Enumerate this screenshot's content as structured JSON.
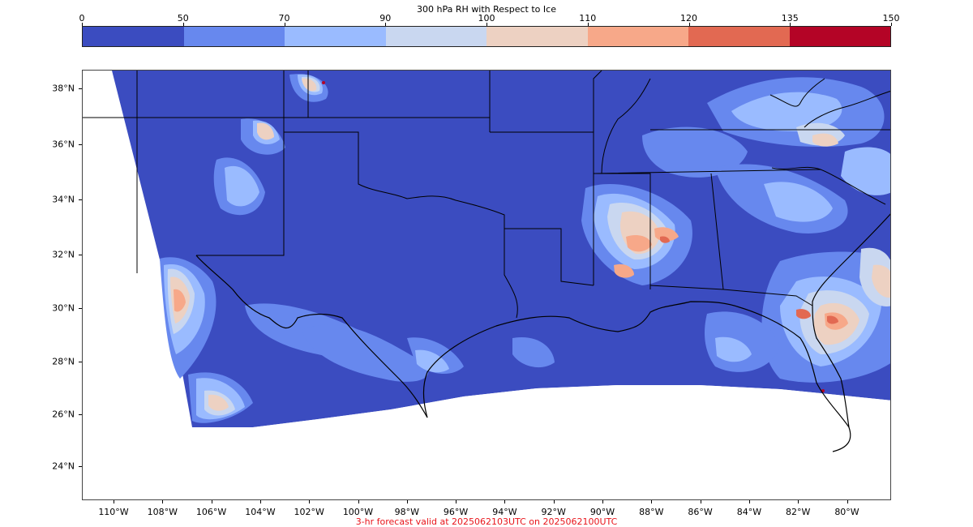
{
  "colorbar": {
    "title": "300 hPa RH with Respect to Ice",
    "levels": [
      "0",
      "50",
      "70",
      "90",
      "100",
      "110",
      "120",
      "135",
      "150"
    ],
    "colors": [
      "#3b4cc0",
      "#6788ee",
      "#9abbff",
      "#c9d7f0",
      "#edd1c2",
      "#f7a889",
      "#e26952",
      "#b40426"
    ]
  },
  "map": {
    "projection": "lambert-conformal",
    "lon_range": [
      -111.2,
      -79.2
    ],
    "lat_range": [
      22.8,
      38.7
    ],
    "lat_labels": [
      "38°N",
      "36°N",
      "34°N",
      "32°N",
      "30°N",
      "28°N",
      "26°N",
      "24°N"
    ],
    "lon_labels": [
      "110°W",
      "108°W",
      "106°W",
      "104°W",
      "102°W",
      "100°W",
      "98°W",
      "96°W",
      "94°W",
      "92°W",
      "90°W",
      "88°W",
      "86°W",
      "84°W",
      "82°W",
      "80°W"
    ],
    "background_color": "#3b4cc0",
    "outside_domain_color": "#ffffff",
    "border_color": "#000000"
  },
  "footer": {
    "text": "3-hr forecast valid at 2025062103UTC on 2025062100UTC"
  }
}
